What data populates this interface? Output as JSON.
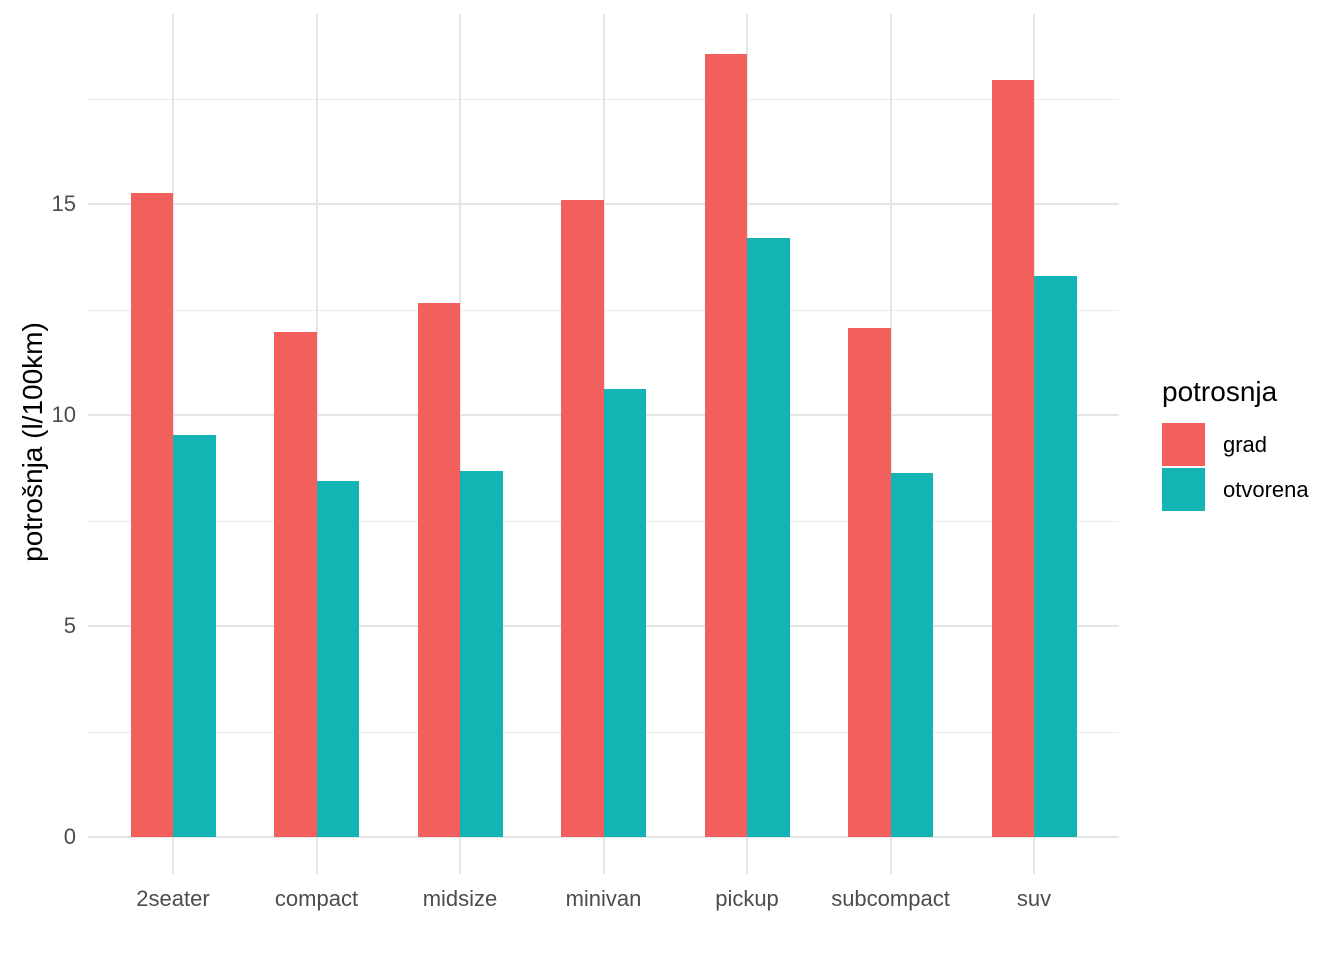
{
  "chart_data": {
    "type": "bar",
    "title": "",
    "categories": [
      "2seater",
      "compact",
      "midsize",
      "minivan",
      "pickup",
      "subcompact",
      "suv"
    ],
    "series": [
      {
        "name": "grad",
        "color": "#F25F5D",
        "values": [
          15.27,
          11.97,
          12.66,
          15.09,
          18.56,
          12.05,
          17.94
        ]
      },
      {
        "name": "otvorena",
        "color": "#15B4B4",
        "values": [
          9.53,
          8.44,
          8.68,
          10.62,
          14.19,
          8.63,
          13.29
        ]
      }
    ],
    "xlabel": "",
    "ylabel": "potrošnja (l/100km)",
    "ylim": [
      0,
      19.5
    ],
    "y_major_ticks": [
      0,
      5,
      10,
      15
    ],
    "y_minor_ticks": [
      2.5,
      7.5,
      12.5,
      17.5
    ],
    "grid": "horizontal major+minor, vertical major at categories",
    "legend": {
      "title": "potrosnja",
      "position": "right"
    },
    "colors": {
      "background": "#FFFFFF",
      "gridline": "#E5E5E5",
      "tick_label": "#4D4D4D",
      "text": "#000000"
    }
  }
}
